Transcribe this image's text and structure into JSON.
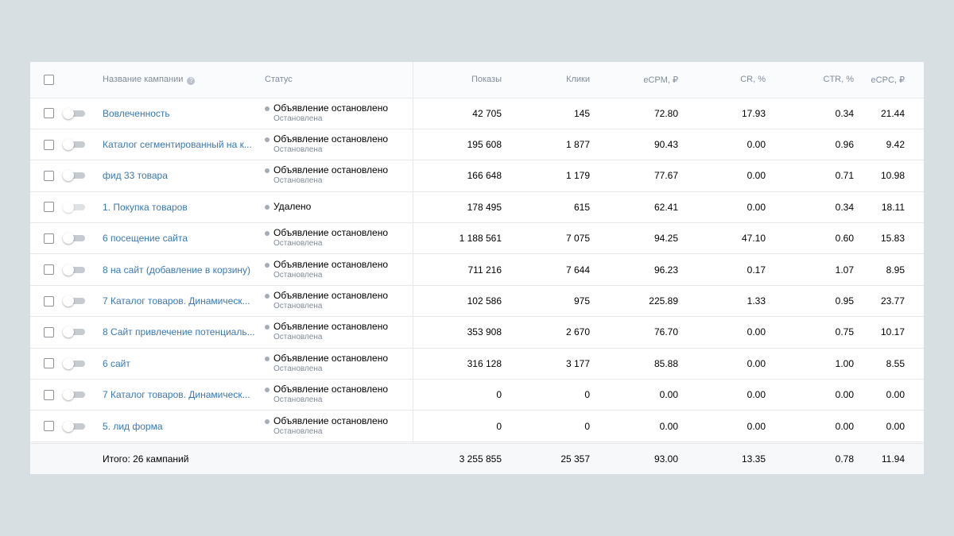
{
  "header": {
    "name": "Название кампании",
    "status": "Статус",
    "shows": "Показы",
    "clicks": "Клики",
    "ecpm": "eCPM, ₽",
    "cr": "CR, %",
    "ctr": "CTR, %",
    "ecpc": "eCPC, ₽",
    "help_glyph": "?"
  },
  "rows": [
    {
      "name": "Вовлеченность",
      "status": "Объявление остановлено",
      "substatus": "Остановлена",
      "shows": "42 705",
      "clicks": "145",
      "ecpm": "72.80",
      "cr": "17.93",
      "ctr": "0.34",
      "ecpc": "21.44",
      "enabled": true
    },
    {
      "name": "Каталог сегментированный на к...",
      "status": "Объявление остановлено",
      "substatus": "Остановлена",
      "shows": "195 608",
      "clicks": "1 877",
      "ecpm": "90.43",
      "cr": "0.00",
      "ctr": "0.96",
      "ecpc": "9.42",
      "enabled": true
    },
    {
      "name": "фид 33 товара",
      "status": "Объявление остановлено",
      "substatus": "Остановлена",
      "shows": "166 648",
      "clicks": "1 179",
      "ecpm": "77.67",
      "cr": "0.00",
      "ctr": "0.71",
      "ecpc": "10.98",
      "enabled": true
    },
    {
      "name": "1. Покупка товаров",
      "status": "Удалено",
      "substatus": "",
      "shows": "178 495",
      "clicks": "615",
      "ecpm": "62.41",
      "cr": "0.00",
      "ctr": "0.34",
      "ecpc": "18.11",
      "enabled": false
    },
    {
      "name": "6 посещение сайта",
      "status": "Объявление остановлено",
      "substatus": "Остановлена",
      "shows": "1 188 561",
      "clicks": "7 075",
      "ecpm": "94.25",
      "cr": "47.10",
      "ctr": "0.60",
      "ecpc": "15.83",
      "enabled": true
    },
    {
      "name": "8 на сайт (добавление в корзину)",
      "status": "Объявление остановлено",
      "substatus": "Остановлена",
      "shows": "711 216",
      "clicks": "7 644",
      "ecpm": "96.23",
      "cr": "0.17",
      "ctr": "1.07",
      "ecpc": "8.95",
      "enabled": true
    },
    {
      "name": "7 Каталог товаров. Динамическ...",
      "status": "Объявление остановлено",
      "substatus": "Остановлена",
      "shows": "102 586",
      "clicks": "975",
      "ecpm": "225.89",
      "cr": "1.33",
      "ctr": "0.95",
      "ecpc": "23.77",
      "enabled": true
    },
    {
      "name": "8 Сайт привлечение потенциаль...",
      "status": "Объявление остановлено",
      "substatus": "Остановлена",
      "shows": "353 908",
      "clicks": "2 670",
      "ecpm": "76.70",
      "cr": "0.00",
      "ctr": "0.75",
      "ecpc": "10.17",
      "enabled": true
    },
    {
      "name": "6 сайт",
      "status": "Объявление остановлено",
      "substatus": "Остановлена",
      "shows": "316 128",
      "clicks": "3 177",
      "ecpm": "85.88",
      "cr": "0.00",
      "ctr": "1.00",
      "ecpc": "8.55",
      "enabled": true
    },
    {
      "name": "7 Каталог товаров. Динамическ...",
      "status": "Объявление остановлено",
      "substatus": "Остановлена",
      "shows": "0",
      "clicks": "0",
      "ecpm": "0.00",
      "cr": "0.00",
      "ctr": "0.00",
      "ecpc": "0.00",
      "enabled": true
    },
    {
      "name": "5. лид форма",
      "status": "Объявление остановлено",
      "substatus": "Остановлена",
      "shows": "0",
      "clicks": "0",
      "ecpm": "0.00",
      "cr": "0.00",
      "ctr": "0.00",
      "ecpc": "0.00",
      "enabled": true
    }
  ],
  "totals": {
    "label": "Итого: 26 кампаний",
    "shows": "3 255 855",
    "clicks": "25 357",
    "ecpm": "93.00",
    "cr": "13.35",
    "ctr": "0.78",
    "ecpc": "11.94"
  },
  "colors": {
    "link": "#3b78b5",
    "muted": "#818c99",
    "border": "#e7e8ec",
    "page_bg": "#d8dfe3"
  }
}
